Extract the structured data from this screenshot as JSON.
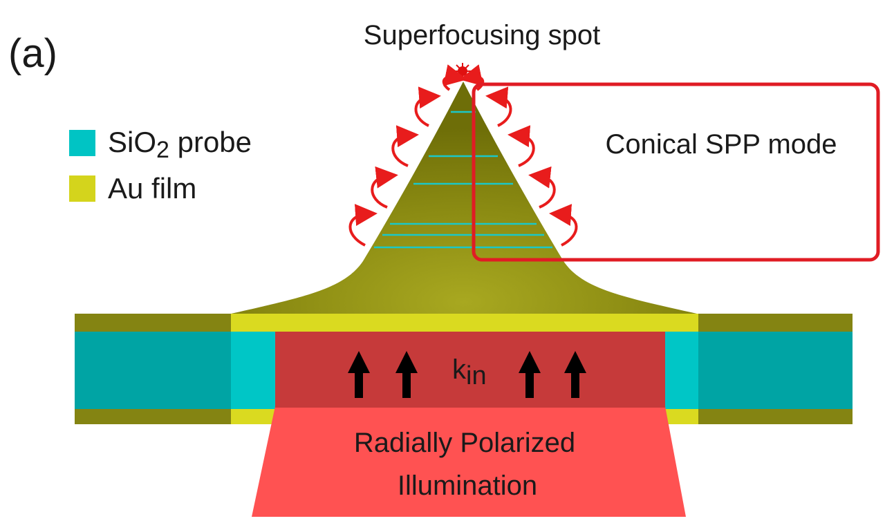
{
  "panel_label": "(a)",
  "title": "Superfocusing spot",
  "legend": [
    {
      "main": "SiO",
      "sub": "2",
      "rest": " probe",
      "color": "#00c4c4"
    },
    {
      "main": "Au film",
      "sub": "",
      "rest": "",
      "color": "#d4d41c"
    }
  ],
  "annotation": "Conical SPP mode",
  "wave_vector": {
    "main": "k",
    "sub": "in"
  },
  "illumination": {
    "line1": "Radially Polarized",
    "line2": "Illumination"
  },
  "colors": {
    "cone": "#8a8a10",
    "au_bright": "#dada20",
    "au_dark": "#808010",
    "sio2_bright": "#00c6c6",
    "sio2_dark": "#00a4a4",
    "beam_inside": "#c83838",
    "beam_outside": "#ff5050",
    "highlight_box": "#e01c24",
    "plasmon_arrows": "#e81c1c"
  }
}
